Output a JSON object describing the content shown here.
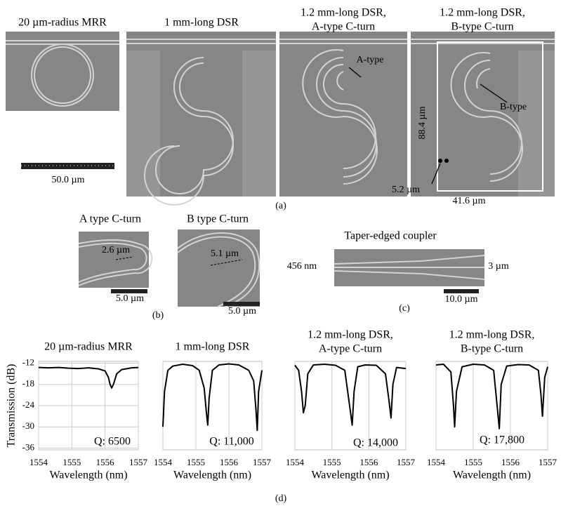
{
  "panels": {
    "a": {
      "label": "(a)",
      "images": [
        {
          "title": [
            "20 µm-radius MRR"
          ],
          "scale": "50.0 µm"
        },
        {
          "title": [
            "1 mm-long DSR"
          ]
        },
        {
          "title": [
            "1.2 mm-long DSR,",
            "A-type C-turn"
          ],
          "annotations": [
            "A-type"
          ]
        },
        {
          "title": [
            "1.2 mm-long DSR,",
            "B-type C-turn"
          ],
          "annotations": [
            "B-type",
            "88.4 µm",
            "5.2 µm",
            "41.6 µm"
          ]
        }
      ]
    },
    "b": {
      "label": "(b)",
      "images": [
        {
          "title": "A type C-turn",
          "dimension": "2.6 µm",
          "scale": "5.0 µm"
        },
        {
          "title": "B type C-turn",
          "dimension": "5.1 µm",
          "scale": "5.0 µm"
        }
      ]
    },
    "c": {
      "label": "(c)",
      "title": "Taper-edged coupler",
      "left": "456 nm",
      "right": "3 µm",
      "scale": "10.0 µm"
    },
    "d": {
      "label": "(d)"
    }
  },
  "chart_data": [
    {
      "type": "line",
      "title": [
        "20 µm-radius MRR"
      ],
      "x_label": "Wavelength (nm)",
      "y_label": "Transmission (dB)",
      "annotation": "Q: 6500",
      "color": "#000000",
      "grid": true,
      "x": [
        1554,
        1554.3,
        1554.6,
        1554.9,
        1555.2,
        1555.5,
        1555.8,
        1556,
        1556.1,
        1556.15,
        1556.2,
        1556.25,
        1556.35,
        1556.5,
        1556.8,
        1557
      ],
      "values": [
        -13.2,
        -13.3,
        -13.2,
        -13.4,
        -13.5,
        -13.3,
        -13.6,
        -14.2,
        -16,
        -18,
        -19,
        -18,
        -15,
        -13.8,
        -13.3,
        -13.2
      ],
      "xlim": [
        1554,
        1557
      ],
      "xticks": [
        1554,
        1555,
        1556,
        1557
      ],
      "ylim": [
        -36.5,
        -11.5
      ],
      "yticks": [
        -12,
        -18,
        -24,
        -30,
        -36
      ]
    },
    {
      "type": "line",
      "title": [
        "1 mm-long DSR"
      ],
      "x_label": "Wavelength (nm)",
      "annotation": "Q: 11,000",
      "color": "#000000",
      "grid": true,
      "x": [
        1554,
        1554.05,
        1554.15,
        1554.3,
        1554.6,
        1554.9,
        1555.1,
        1555.25,
        1555.32,
        1555.36,
        1555.4,
        1555.5,
        1555.7,
        1556,
        1556.3,
        1556.6,
        1556.75,
        1556.82,
        1556.86,
        1556.9,
        1557
      ],
      "values": [
        -30,
        -20,
        -14,
        -12.8,
        -12.3,
        -12.7,
        -14,
        -19,
        -26,
        -29.5,
        -22,
        -14,
        -12.5,
        -12.2,
        -12.5,
        -14,
        -17,
        -25,
        -31,
        -20,
        -14
      ],
      "xlim": [
        1554,
        1557
      ],
      "xticks": [
        1554,
        1555,
        1556,
        1557
      ],
      "ylim": [
        -36.5,
        -11.5
      ]
    },
    {
      "type": "line",
      "title": [
        "1.2 mm-long DSR,",
        "A-type C-turn"
      ],
      "x_label": "Wavelength (nm)",
      "annotation": "Q: 14,000",
      "color": "#000000",
      "grid": true,
      "x": [
        1554,
        1554.1,
        1554.18,
        1554.23,
        1554.28,
        1554.35,
        1554.5,
        1554.8,
        1555.1,
        1555.35,
        1555.48,
        1555.55,
        1555.6,
        1555.7,
        1555.9,
        1556.2,
        1556.45,
        1556.55,
        1556.6,
        1556.65,
        1556.75,
        1557
      ],
      "values": [
        -12.6,
        -14,
        -20,
        -26,
        -24,
        -15,
        -12.5,
        -12.3,
        -12.6,
        -14,
        -24,
        -29.5,
        -20,
        -13,
        -12.5,
        -12.6,
        -15,
        -23,
        -27.5,
        -18,
        -13.2,
        -13.5
      ],
      "xlim": [
        1554,
        1557
      ],
      "xticks": [
        1554,
        1555,
        1556,
        1557
      ],
      "ylim": [
        -36.5,
        -11.5
      ]
    },
    {
      "type": "line",
      "title": [
        "1.2 mm-long DSR,",
        "B-type C-turn"
      ],
      "x_label": "Wavelength (nm)",
      "annotation": "Q: 17,800",
      "color": "#000000",
      "grid": true,
      "x": [
        1554,
        1554.2,
        1554.4,
        1554.47,
        1554.5,
        1554.55,
        1554.7,
        1555,
        1555.3,
        1555.55,
        1555.65,
        1555.7,
        1555.75,
        1555.9,
        1556.2,
        1556.5,
        1556.75,
        1556.82,
        1556.86,
        1556.92,
        1557
      ],
      "values": [
        -12.5,
        -12.3,
        -14.5,
        -24,
        -30,
        -20,
        -13,
        -12.3,
        -12.5,
        -14,
        -25,
        -30.5,
        -18,
        -12.8,
        -12.4,
        -12.5,
        -14,
        -21,
        -27,
        -16,
        -13
      ],
      "xlim": [
        1554,
        1557
      ],
      "xticks": [
        1554,
        1555,
        1556,
        1557
      ],
      "ylim": [
        -36.5,
        -11.5
      ]
    }
  ]
}
